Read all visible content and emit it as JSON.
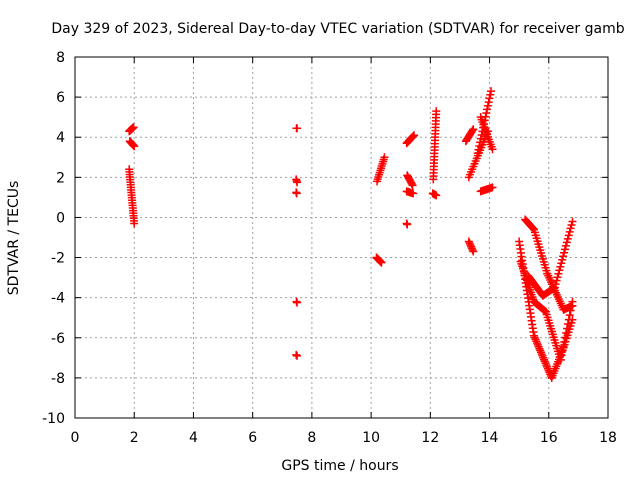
{
  "chart_data": {
    "type": "scatter",
    "title": "Day 329 of 2023, Sidereal Day-to-day VTEC variation (SDTVAR) for receiver gamb",
    "xlabel": "GPS time / hours",
    "ylabel": "SDTVAR / TECUs",
    "xlim": [
      0,
      18
    ],
    "ylim": [
      -10,
      8
    ],
    "xticks": [
      0,
      2,
      4,
      6,
      8,
      10,
      12,
      14,
      16,
      18
    ],
    "yticks": [
      -10,
      -8,
      -6,
      -4,
      -2,
      0,
      2,
      4,
      6,
      8
    ],
    "xtick_labels": [
      "0",
      "2",
      "4",
      "6",
      "8",
      "10",
      "12",
      "14",
      "16",
      "18"
    ],
    "ytick_labels": [
      "-10",
      "-8",
      "-6",
      "-4",
      "-2",
      "0",
      "2",
      "4",
      "6",
      "8"
    ],
    "grid": true,
    "marker": "+",
    "color": "#ff0000",
    "segments": [
      {
        "name": "arc-1",
        "from": [
          1.83,
          4.3
        ],
        "to": [
          1.98,
          4.5
        ],
        "n": 10
      },
      {
        "name": "arc-2",
        "from": [
          1.85,
          3.8
        ],
        "to": [
          2.0,
          3.55
        ],
        "n": 8
      },
      {
        "name": "arc-3",
        "from": [
          1.83,
          2.4
        ],
        "to": [
          2.0,
          -0.3
        ],
        "n": 22
      },
      {
        "name": "arc-4",
        "from": [
          7.48,
          4.45
        ],
        "to": [
          7.5,
          4.45
        ],
        "n": 2
      },
      {
        "name": "arc-5",
        "from": [
          7.47,
          1.9
        ],
        "to": [
          7.5,
          1.75
        ],
        "n": 3
      },
      {
        "name": "arc-6",
        "from": [
          7.47,
          1.25
        ],
        "to": [
          7.49,
          1.2
        ],
        "n": 2
      },
      {
        "name": "arc-7",
        "from": [
          7.48,
          -4.2
        ],
        "to": [
          7.5,
          -4.25
        ],
        "n": 2
      },
      {
        "name": "arc-8",
        "from": [
          7.47,
          -6.85
        ],
        "to": [
          7.5,
          -6.9
        ],
        "n": 2
      },
      {
        "name": "arc-9",
        "from": [
          10.2,
          1.8
        ],
        "to": [
          10.45,
          3.0
        ],
        "n": 12
      },
      {
        "name": "arc-10",
        "from": [
          10.18,
          -2.0
        ],
        "to": [
          10.35,
          -2.25
        ],
        "n": 8
      },
      {
        "name": "arc-11",
        "from": [
          11.2,
          3.7
        ],
        "to": [
          11.45,
          4.1
        ],
        "n": 10
      },
      {
        "name": "arc-12",
        "from": [
          11.22,
          2.1
        ],
        "to": [
          11.4,
          1.6
        ],
        "n": 8
      },
      {
        "name": "arc-13",
        "from": [
          11.2,
          1.3
        ],
        "to": [
          11.42,
          1.2
        ],
        "n": 6
      },
      {
        "name": "arc-14",
        "from": [
          11.2,
          -0.3
        ],
        "to": [
          11.22,
          -0.35
        ],
        "n": 2
      },
      {
        "name": "arc-15",
        "from": [
          12.1,
          1.9
        ],
        "to": [
          12.2,
          5.3
        ],
        "n": 22
      },
      {
        "name": "arc-16",
        "from": [
          12.08,
          1.2
        ],
        "to": [
          12.2,
          1.1
        ],
        "n": 5
      },
      {
        "name": "arc-17",
        "from": [
          13.2,
          3.8
        ],
        "to": [
          13.45,
          4.4
        ],
        "n": 10
      },
      {
        "name": "arc-18",
        "from": [
          13.3,
          -1.2
        ],
        "to": [
          13.45,
          -1.7
        ],
        "n": 7
      },
      {
        "name": "arc-19",
        "from": [
          13.3,
          2.0
        ],
        "to": [
          13.95,
          4.3
        ],
        "n": 18
      },
      {
        "name": "arc-20",
        "from": [
          13.6,
          3.2
        ],
        "to": [
          14.05,
          6.3
        ],
        "n": 18
      },
      {
        "name": "arc-21",
        "from": [
          13.7,
          5.0
        ],
        "to": [
          14.1,
          3.4
        ],
        "n": 14
      },
      {
        "name": "arc-22",
        "from": [
          13.7,
          1.3
        ],
        "to": [
          14.1,
          1.5
        ],
        "n": 10
      },
      {
        "name": "arc-23",
        "from": [
          15.0,
          -1.2
        ],
        "to": [
          15.5,
          -5.9
        ],
        "n": 26
      },
      {
        "name": "arc-24",
        "from": [
          15.5,
          -5.9
        ],
        "to": [
          16.1,
          -8.0
        ],
        "n": 24
      },
      {
        "name": "arc-25",
        "from": [
          16.1,
          -8.0
        ],
        "to": [
          16.5,
          -6.5
        ],
        "n": 14
      },
      {
        "name": "arc-26",
        "from": [
          16.5,
          -6.5
        ],
        "to": [
          16.8,
          -5.1
        ],
        "n": 10
      },
      {
        "name": "arc-27",
        "from": [
          15.05,
          -2.2
        ],
        "to": [
          15.5,
          -4.2
        ],
        "n": 18
      },
      {
        "name": "arc-28",
        "from": [
          15.5,
          -4.2
        ],
        "to": [
          15.9,
          -4.7
        ],
        "n": 14
      },
      {
        "name": "arc-29",
        "from": [
          15.9,
          -4.7
        ],
        "to": [
          16.4,
          -7.1
        ],
        "n": 18
      },
      {
        "name": "arc-30",
        "from": [
          16.4,
          -7.1
        ],
        "to": [
          16.8,
          -4.2
        ],
        "n": 14
      },
      {
        "name": "arc-31",
        "from": [
          15.2,
          -0.1
        ],
        "to": [
          15.5,
          -0.6
        ],
        "n": 10
      },
      {
        "name": "arc-32",
        "from": [
          15.5,
          -0.6
        ],
        "to": [
          15.95,
          -2.8
        ],
        "n": 16
      },
      {
        "name": "arc-33",
        "from": [
          15.95,
          -2.8
        ],
        "to": [
          16.5,
          -4.6
        ],
        "n": 18
      },
      {
        "name": "arc-34",
        "from": [
          16.5,
          -4.6
        ],
        "to": [
          16.8,
          -4.4
        ],
        "n": 8
      },
      {
        "name": "arc-35",
        "from": [
          15.3,
          -2.9
        ],
        "to": [
          15.8,
          -3.9
        ],
        "n": 16
      },
      {
        "name": "arc-36",
        "from": [
          15.8,
          -3.9
        ],
        "to": [
          16.2,
          -3.5
        ],
        "n": 10
      },
      {
        "name": "arc-37",
        "from": [
          16.2,
          -3.5
        ],
        "to": [
          16.8,
          -0.2
        ],
        "n": 20
      }
    ]
  }
}
